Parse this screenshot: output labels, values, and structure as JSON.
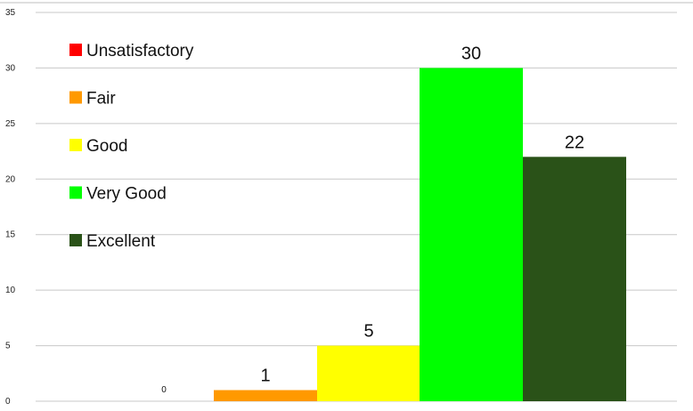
{
  "chart_data": {
    "type": "bar",
    "title": "",
    "xlabel": "",
    "ylabel": "",
    "ylim": [
      0,
      35
    ],
    "yticks": [
      0,
      5,
      10,
      15,
      20,
      25,
      30,
      35
    ],
    "grid": true,
    "legend_position": "top-left",
    "categories": [
      "Unsatisfactory",
      "Fair",
      "Good",
      "Very Good",
      "Excellent"
    ],
    "values": [
      0,
      1,
      5,
      30,
      22
    ],
    "colors": [
      "#ff0000",
      "#ff9900",
      "#ffff00",
      "#00ff00",
      "#2a5218"
    ],
    "data_labels": [
      "0",
      "1",
      "5",
      "30",
      "22"
    ]
  }
}
